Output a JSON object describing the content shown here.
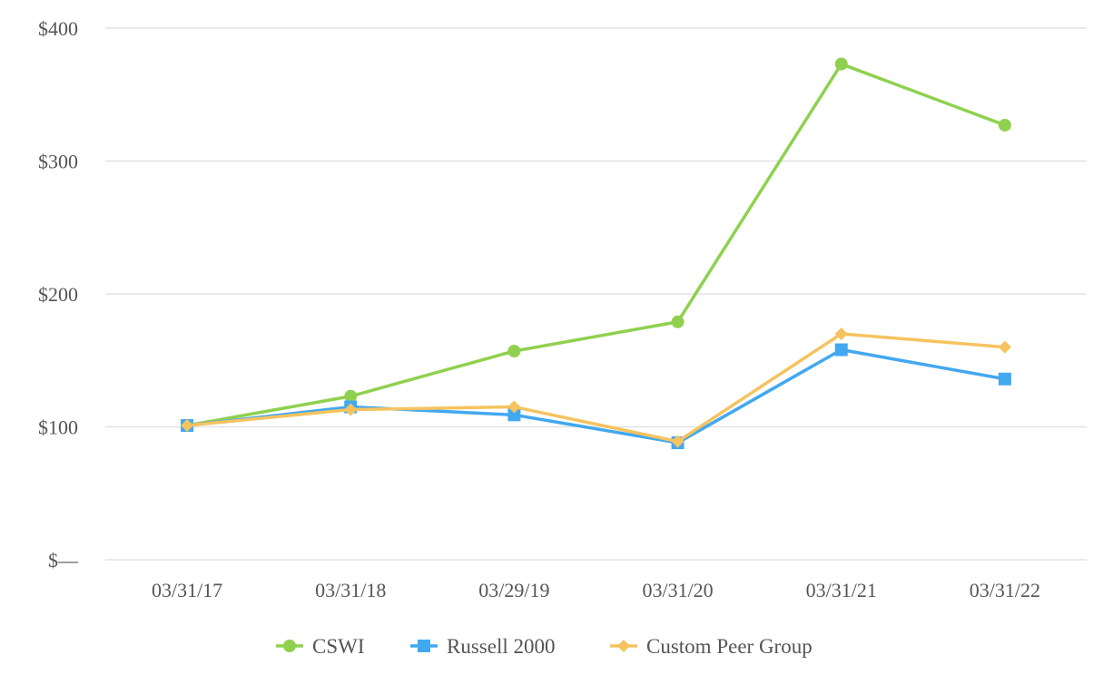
{
  "chart_data": {
    "type": "line",
    "title": "",
    "xlabel": "",
    "ylabel": "",
    "categories": [
      "03/31/17",
      "03/31/18",
      "03/29/19",
      "03/31/20",
      "03/31/21",
      "03/31/22"
    ],
    "y_ticks": [
      {
        "value": 0,
        "label": "$—"
      },
      {
        "value": 100,
        "label": "$100"
      },
      {
        "value": 200,
        "label": "$200"
      },
      {
        "value": 300,
        "label": "$300"
      },
      {
        "value": 400,
        "label": "$400"
      }
    ],
    "ylim": [
      0,
      400
    ],
    "grid": true,
    "legend_position": "bottom-center",
    "series": [
      {
        "name": "CSWI",
        "color": "#8fd14f",
        "marker": "circle",
        "values": [
          101,
          123,
          157,
          179,
          373,
          327
        ]
      },
      {
        "name": "Russell 2000",
        "color": "#42a8f0",
        "marker": "square",
        "values": [
          101,
          115,
          109,
          88,
          158,
          136
        ]
      },
      {
        "name": "Custom Peer Group",
        "color": "#f5c35f",
        "marker": "diamond",
        "values": [
          101,
          113,
          115,
          89,
          170,
          160
        ]
      }
    ]
  }
}
